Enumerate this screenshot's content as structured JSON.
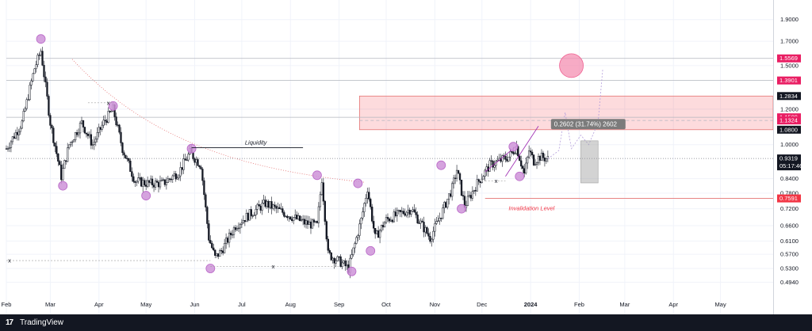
{
  "app": {
    "brand_logo": "17",
    "brand_name": "TradingView"
  },
  "colors": {
    "up": "#131722",
    "down": "#131722",
    "accent_pink": "#e91e63",
    "zone_fill": "rgba(242,54,69,0.18)",
    "circle_fill": "rgba(206,147,216,0.85)",
    "dark_badge": "#131722",
    "invalidation": "#f23645",
    "measure_box": "#7b7b7b"
  },
  "chart_data": {
    "type": "candlestick",
    "y_scale": "log",
    "ylim": [
      0.475,
      2.05
    ],
    "x_range_days": [
      0,
      485
    ],
    "month_ticks": [
      {
        "label": "Feb",
        "day": 0
      },
      {
        "label": "Mar",
        "day": 28
      },
      {
        "label": "Apr",
        "day": 59
      },
      {
        "label": "May",
        "day": 89
      },
      {
        "label": "Jun",
        "day": 120
      },
      {
        "label": "Jul",
        "day": 150
      },
      {
        "label": "Aug",
        "day": 181
      },
      {
        "label": "Sep",
        "day": 212
      },
      {
        "label": "Oct",
        "day": 242
      },
      {
        "label": "Nov",
        "day": 273
      },
      {
        "label": "Dec",
        "day": 303
      },
      {
        "label": "2024",
        "day": 334
      },
      {
        "label": "Feb",
        "day": 365
      },
      {
        "label": "Mar",
        "day": 394
      },
      {
        "label": "Apr",
        "day": 425
      },
      {
        "label": "May",
        "day": 455
      }
    ],
    "price_ticks": [
      {
        "label": "1.9000",
        "value": 1.9
      },
      {
        "label": "1.7000",
        "value": 1.7
      },
      {
        "label": "1.5000",
        "value": 1.5
      },
      {
        "label": "1.2000",
        "value": 1.2
      },
      {
        "label": "1.0000",
        "value": 1.0
      },
      {
        "label": "0.8400",
        "value": 0.84
      },
      {
        "label": "0.7800",
        "value": 0.78
      },
      {
        "label": "0.7200",
        "value": 0.72
      },
      {
        "label": "0.6600",
        "value": 0.66
      },
      {
        "label": "0.6100",
        "value": 0.61
      },
      {
        "label": "0.5700",
        "value": 0.57
      },
      {
        "label": "0.5300",
        "value": 0.53
      },
      {
        "label": "0.4940",
        "value": 0.494
      }
    ],
    "price_badges": [
      {
        "label": "1.5569",
        "value": 1.5569,
        "style": "pink"
      },
      {
        "label": "1.3901",
        "value": 1.3901,
        "style": "pink"
      },
      {
        "label": "1.2834",
        "value": 1.2834,
        "style": "dark"
      },
      {
        "label": "1.1509",
        "value": 1.1509,
        "style": "pink"
      },
      {
        "label": "1.1324",
        "value": 1.1324,
        "style": "pink"
      },
      {
        "label": "1.0800",
        "value": 1.08,
        "style": "dark"
      },
      {
        "label": "0.7591",
        "value": 0.7591,
        "style": "red"
      }
    ],
    "last_price": {
      "label": "0.9319",
      "value": 0.9319,
      "countdown": "05:17:46"
    },
    "anchors": [
      {
        "day": 0,
        "price": 0.98
      },
      {
        "day": 10,
        "price": 1.12
      },
      {
        "day": 18,
        "price": 1.48
      },
      {
        "day": 22,
        "price": 1.62
      },
      {
        "day": 28,
        "price": 1.12
      },
      {
        "day": 35,
        "price": 0.85
      },
      {
        "day": 40,
        "price": 1.0
      },
      {
        "day": 48,
        "price": 1.12
      },
      {
        "day": 55,
        "price": 1.0
      },
      {
        "day": 62,
        "price": 1.12
      },
      {
        "day": 68,
        "price": 1.2
      },
      {
        "day": 74,
        "price": 0.98
      },
      {
        "day": 82,
        "price": 0.83
      },
      {
        "day": 90,
        "price": 0.82
      },
      {
        "day": 100,
        "price": 0.82
      },
      {
        "day": 110,
        "price": 0.87
      },
      {
        "day": 117,
        "price": 0.96
      },
      {
        "day": 124,
        "price": 0.9
      },
      {
        "day": 129,
        "price": 0.62
      },
      {
        "day": 133,
        "price": 0.56
      },
      {
        "day": 137,
        "price": 0.58
      },
      {
        "day": 146,
        "price": 0.66
      },
      {
        "day": 155,
        "price": 0.7
      },
      {
        "day": 165,
        "price": 0.74
      },
      {
        "day": 175,
        "price": 0.71
      },
      {
        "day": 190,
        "price": 0.67
      },
      {
        "day": 198,
        "price": 0.66
      },
      {
        "day": 201,
        "price": 0.84
      },
      {
        "day": 205,
        "price": 0.57
      },
      {
        "day": 212,
        "price": 0.55
      },
      {
        "day": 218,
        "price": 0.53
      },
      {
        "day": 222,
        "price": 0.6
      },
      {
        "day": 226,
        "price": 0.68
      },
      {
        "day": 230,
        "price": 0.8
      },
      {
        "day": 235,
        "price": 0.62
      },
      {
        "day": 242,
        "price": 0.68
      },
      {
        "day": 250,
        "price": 0.7
      },
      {
        "day": 258,
        "price": 0.72
      },
      {
        "day": 265,
        "price": 0.66
      },
      {
        "day": 270,
        "price": 0.62
      },
      {
        "day": 277,
        "price": 0.7
      },
      {
        "day": 284,
        "price": 0.8
      },
      {
        "day": 287,
        "price": 0.88
      },
      {
        "day": 292,
        "price": 0.73
      },
      {
        "day": 300,
        "price": 0.82
      },
      {
        "day": 308,
        "price": 0.9
      },
      {
        "day": 314,
        "price": 0.92
      },
      {
        "day": 320,
        "price": 0.94
      },
      {
        "day": 325,
        "price": 0.99
      },
      {
        "day": 330,
        "price": 0.86
      },
      {
        "day": 333,
        "price": 0.97
      },
      {
        "day": 336,
        "price": 0.92
      },
      {
        "day": 340,
        "price": 0.94
      },
      {
        "day": 345,
        "price": 0.93
      }
    ],
    "markers": [
      {
        "day": 22,
        "price": 1.72
      },
      {
        "day": 36,
        "price": 0.81
      },
      {
        "day": 68,
        "price": 1.22
      },
      {
        "day": 89,
        "price": 0.77
      },
      {
        "day": 118,
        "price": 0.98
      },
      {
        "day": 130,
        "price": 0.53
      },
      {
        "day": 198,
        "price": 0.855
      },
      {
        "day": 220,
        "price": 0.522
      },
      {
        "day": 224,
        "price": 0.82
      },
      {
        "day": 232,
        "price": 0.58
      },
      {
        "day": 277,
        "price": 0.9
      },
      {
        "day": 290,
        "price": 0.72
      },
      {
        "day": 323,
        "price": 0.99
      },
      {
        "day": 327,
        "price": 0.85
      }
    ],
    "pink_zone": {
      "day_from": 225,
      "day_to": 485,
      "top": 1.2834,
      "bottom": 1.08
    },
    "h_lines": [
      {
        "price": 1.5569,
        "day_from": 0,
        "style": "solid"
      },
      {
        "price": 1.3901,
        "day_from": 0,
        "style": "solid"
      },
      {
        "price": 1.1509,
        "day_from": 0,
        "style": "solid"
      },
      {
        "price": 1.1324,
        "day_from": 225,
        "style": "dashed"
      },
      {
        "price": 0.9319,
        "day_from": 0,
        "style": "dotted"
      },
      {
        "price": 0.7591,
        "day_from": 305,
        "style": "solid-red"
      }
    ],
    "liquidity": {
      "label": "Liquidity",
      "price": 0.985,
      "day_from": 118,
      "day_to": 189,
      "label_day": 152
    },
    "invalidation": {
      "label": "Invalidation Level",
      "day": 320,
      "price": 0.715
    },
    "x_marks": [
      {
        "day": 65,
        "price": 1.24,
        "line_from": 52,
        "line_to": 68,
        "label": "x"
      },
      {
        "day": 170,
        "price": 0.535,
        "line_from": 130,
        "line_to": 213,
        "label": "x"
      },
      {
        "day": 2,
        "price": 0.552,
        "line_from": 0,
        "line_to": 130,
        "label": "x"
      },
      {
        "day": 312,
        "price": 0.83,
        "line_from": 305,
        "line_to": 318,
        "label": "x"
      }
    ],
    "measure": {
      "label": "0.2602 (31.74%) 2602",
      "label_day": 349,
      "label_price": 1.1,
      "box_day_from": 366,
      "box_day_to": 377,
      "box_top": 1.02,
      "box_bottom": 0.822
    },
    "target_circle": {
      "day": 360,
      "price": 1.5
    }
  }
}
